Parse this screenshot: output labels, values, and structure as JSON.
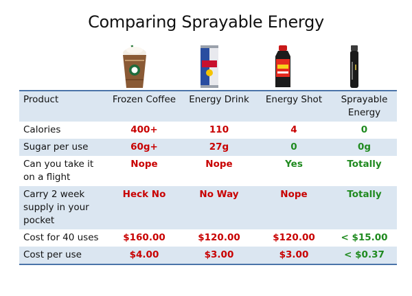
{
  "title": "Comparing Sprayable Energy",
  "colors": {
    "red": "#c80000",
    "green": "#1f8a1f",
    "rule": "#4a73a8",
    "shade": "#dbe6f1"
  },
  "images": [
    "frozen-coffee-cup-icon",
    "energy-drink-can-icon",
    "energy-shot-bottle-icon",
    "spray-bottle-icon"
  ],
  "table": {
    "header": [
      "Product",
      "Frozen Coffee",
      "Energy Drink",
      "Energy Shot",
      "Sprayable Energy"
    ],
    "rows": [
      {
        "label": "Calories",
        "values": [
          "400+",
          "110",
          "4",
          "0"
        ],
        "colors": [
          "red",
          "red",
          "red",
          "green"
        ]
      },
      {
        "label": "Sugar per use",
        "values": [
          "60g+",
          "27g",
          "0",
          "0g"
        ],
        "colors": [
          "red",
          "red",
          "green",
          "green"
        ]
      },
      {
        "label": "Can you take it on a flight",
        "values": [
          "Nope",
          "Nope",
          "Yes",
          "Totally"
        ],
        "colors": [
          "red",
          "red",
          "green",
          "green"
        ]
      },
      {
        "label": "Carry 2 week supply in your pocket",
        "values": [
          "Heck No",
          "No Way",
          "Nope",
          "Totally"
        ],
        "colors": [
          "red",
          "red",
          "red",
          "green"
        ]
      },
      {
        "label": "Cost for 40 uses",
        "values": [
          "$160.00",
          "$120.00",
          "$120.00",
          "< $15.00"
        ],
        "colors": [
          "red",
          "red",
          "red",
          "green"
        ]
      },
      {
        "label": "Cost per use",
        "values": [
          "$4.00",
          "$3.00",
          "$3.00",
          "< $0.37"
        ],
        "colors": [
          "red",
          "red",
          "red",
          "green"
        ]
      }
    ]
  }
}
